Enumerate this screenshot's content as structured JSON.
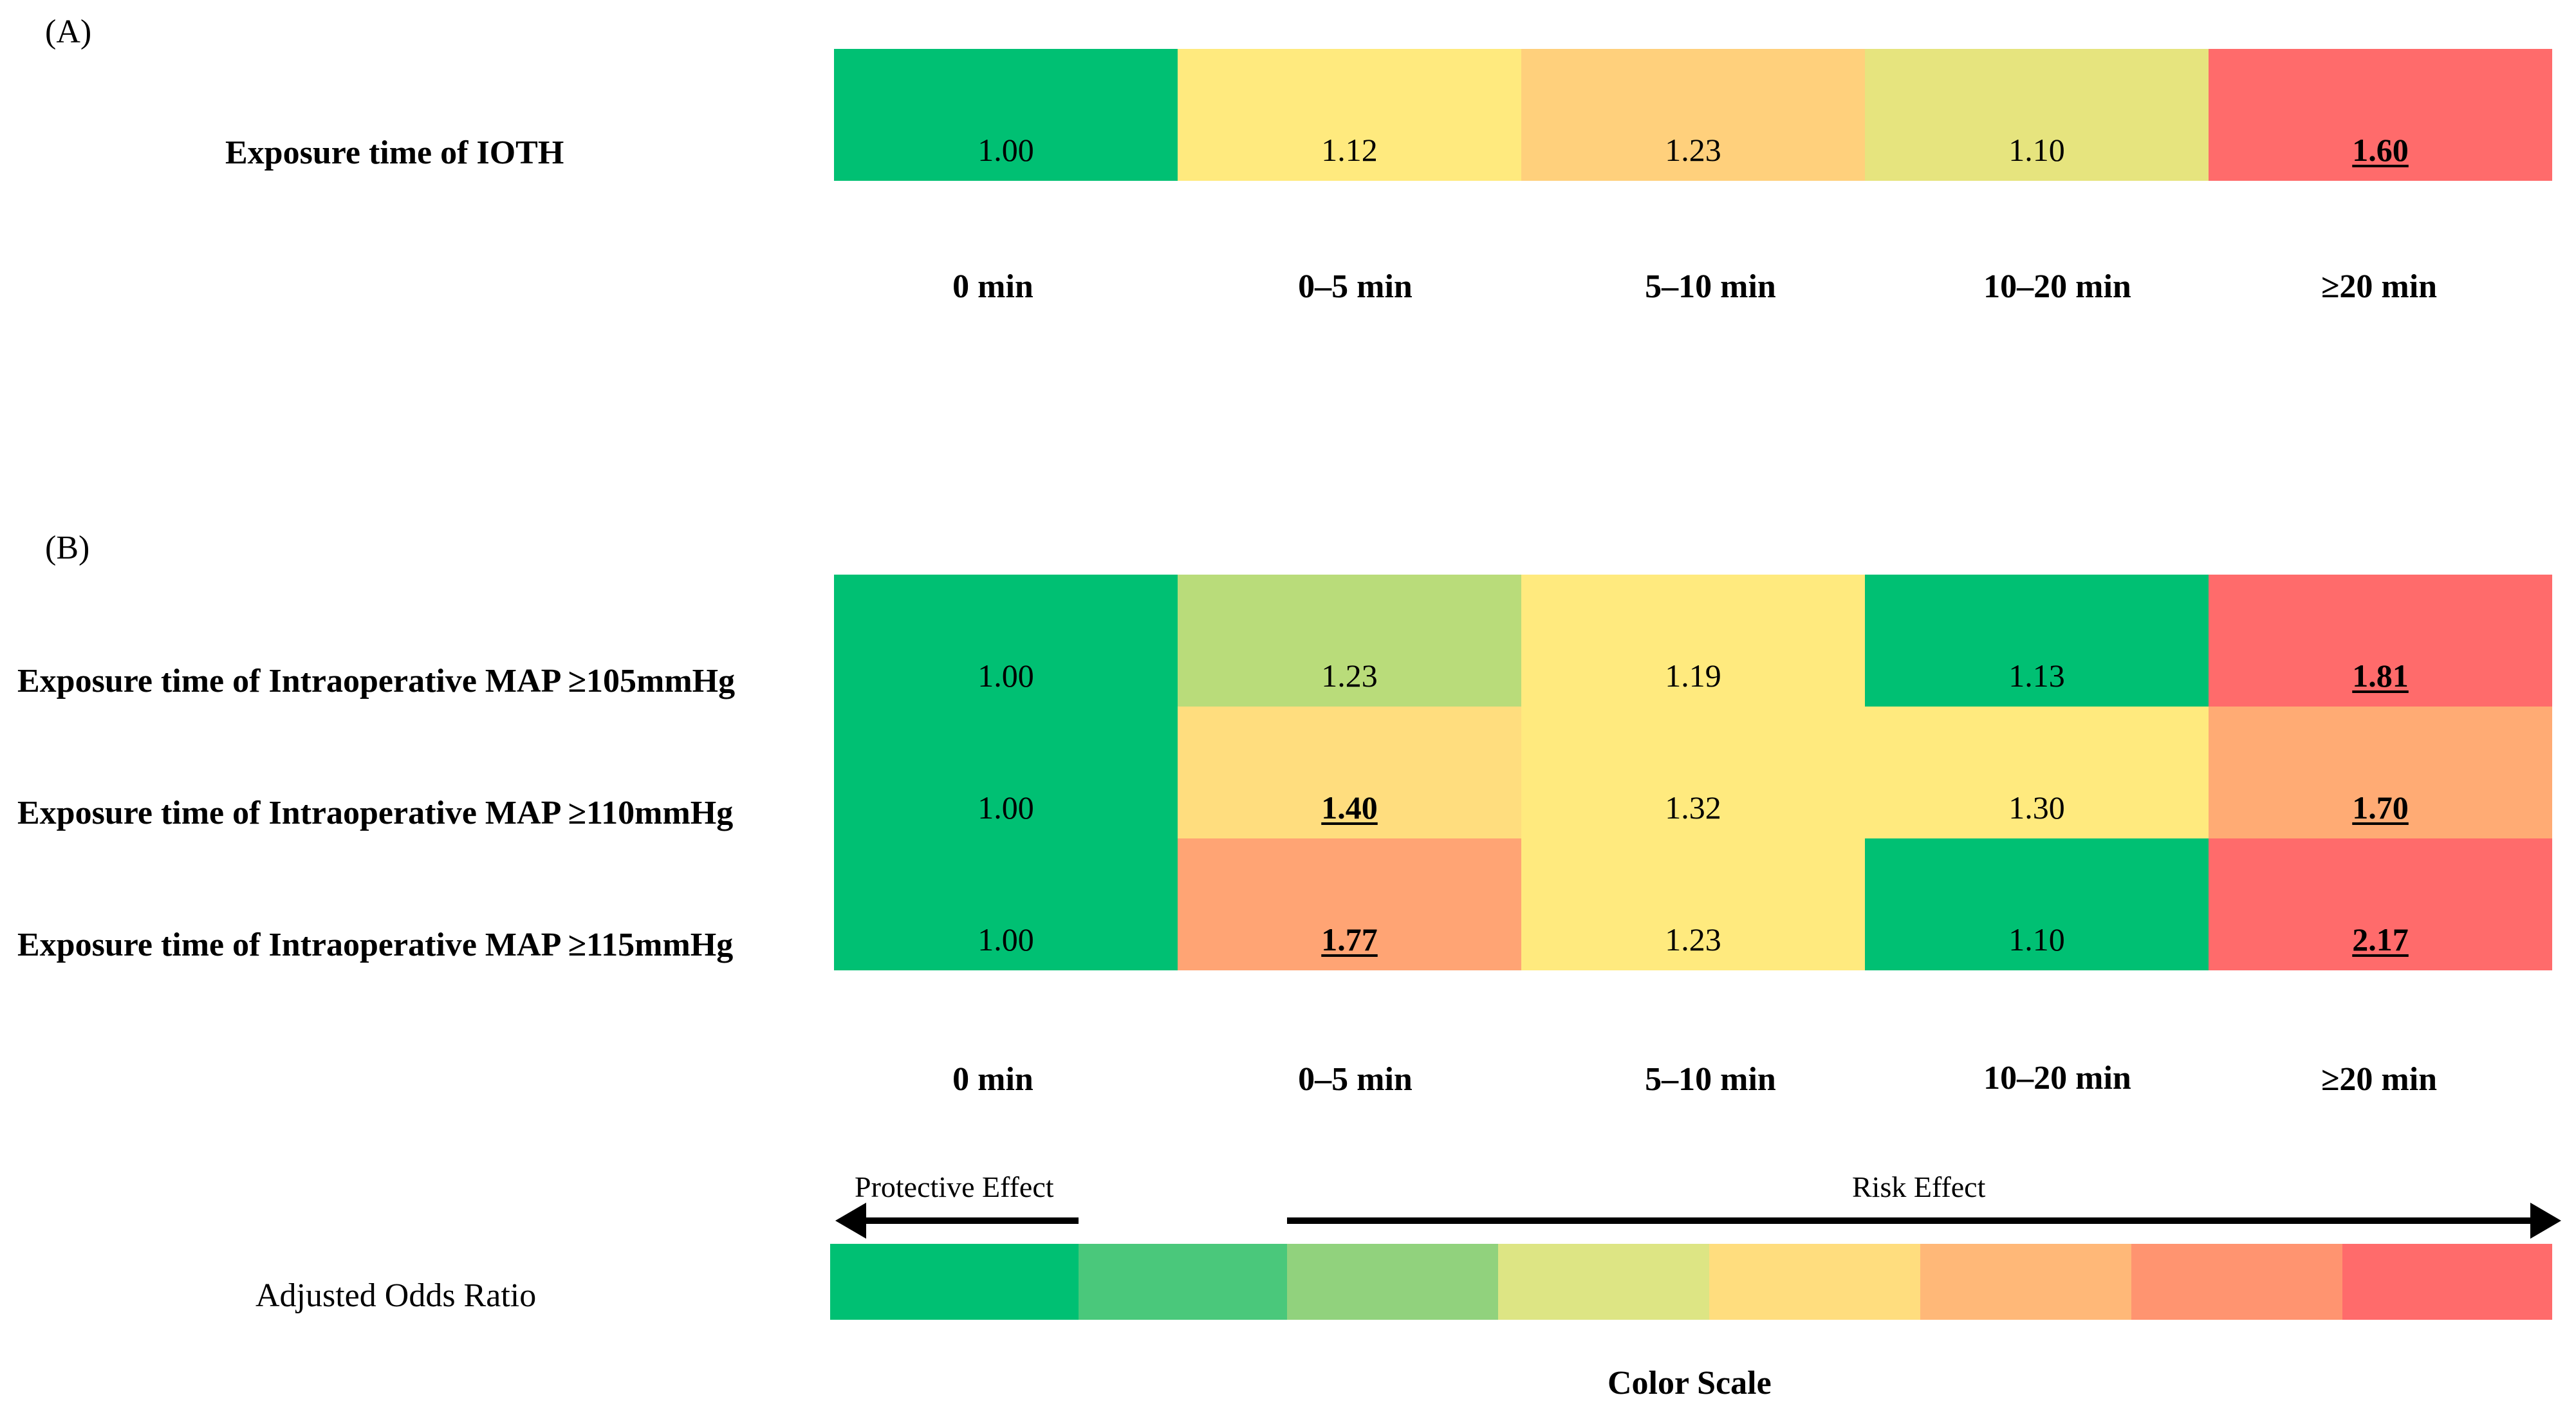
{
  "chart_data": [
    {
      "type": "heatmap",
      "panel": "(A)",
      "rows": [
        "Exposure time of IOTH"
      ],
      "columns": [
        "0 min",
        "0–5 min",
        "5–10 min",
        "10–20 min",
        "≥20 min"
      ],
      "values": [
        [
          1.0,
          1.12,
          1.23,
          1.1,
          1.6
        ]
      ],
      "display": [
        [
          "1.00",
          "1.12",
          "1.23",
          "1.10",
          "1.60"
        ]
      ],
      "significant": [
        [
          false,
          false,
          false,
          false,
          true
        ]
      ],
      "colors": [
        [
          "#00c073",
          "#ffea7e",
          "#ffd07c",
          "#e6e47e",
          "#ff6b6b"
        ]
      ]
    },
    {
      "type": "heatmap",
      "panel": "(B)",
      "rows": [
        "Exposure time of Intraoperative MAP ≥105mmHg",
        "Exposure time of Intraoperative MAP ≥110mmHg",
        "Exposure time of Intraoperative MAP ≥115mmHg"
      ],
      "columns": [
        "0 min",
        "0–5 min",
        "5–10 min",
        "10–20 min",
        "≥20 min"
      ],
      "values": [
        [
          1.0,
          1.23,
          1.19,
          1.13,
          1.81
        ],
        [
          1.0,
          1.4,
          1.32,
          1.3,
          1.7
        ],
        [
          1.0,
          1.77,
          1.23,
          1.1,
          2.17
        ]
      ],
      "display": [
        [
          "1.00",
          "1.23",
          "1.19",
          "1.13",
          "1.81"
        ],
        [
          "1.00",
          "1.40",
          "1.32",
          "1.30",
          "1.70"
        ],
        [
          "1.00",
          "1.77",
          "1.23",
          "1.10",
          "2.17"
        ]
      ],
      "significant": [
        [
          false,
          false,
          false,
          false,
          true
        ],
        [
          false,
          true,
          false,
          false,
          true
        ],
        [
          false,
          true,
          false,
          false,
          true
        ]
      ],
      "colors": [
        [
          "#00c073",
          "#b9dc7a",
          "#ffea7e",
          "#00c073",
          "#ff6b6b"
        ],
        [
          "#00c073",
          "#ffdd7e",
          "#ffea7e",
          "#ffea7e",
          "#ffab74"
        ],
        [
          "#00c073",
          "#ffa474",
          "#ffea7e",
          "#00c073",
          "#ff6b6b"
        ]
      ]
    }
  ],
  "legend": {
    "protective_label": "Protective Effect",
    "risk_label": "Risk Effect",
    "odds_ratio_label": "Adjusted Odds Ratio",
    "scale_title": "Color Scale",
    "scale_colors": [
      "#00c073",
      "#4ac87b",
      "#91d27d",
      "#dde584",
      "#ffdd7e",
      "#ffb878",
      "#ff9470",
      "#ff6b6b"
    ]
  }
}
